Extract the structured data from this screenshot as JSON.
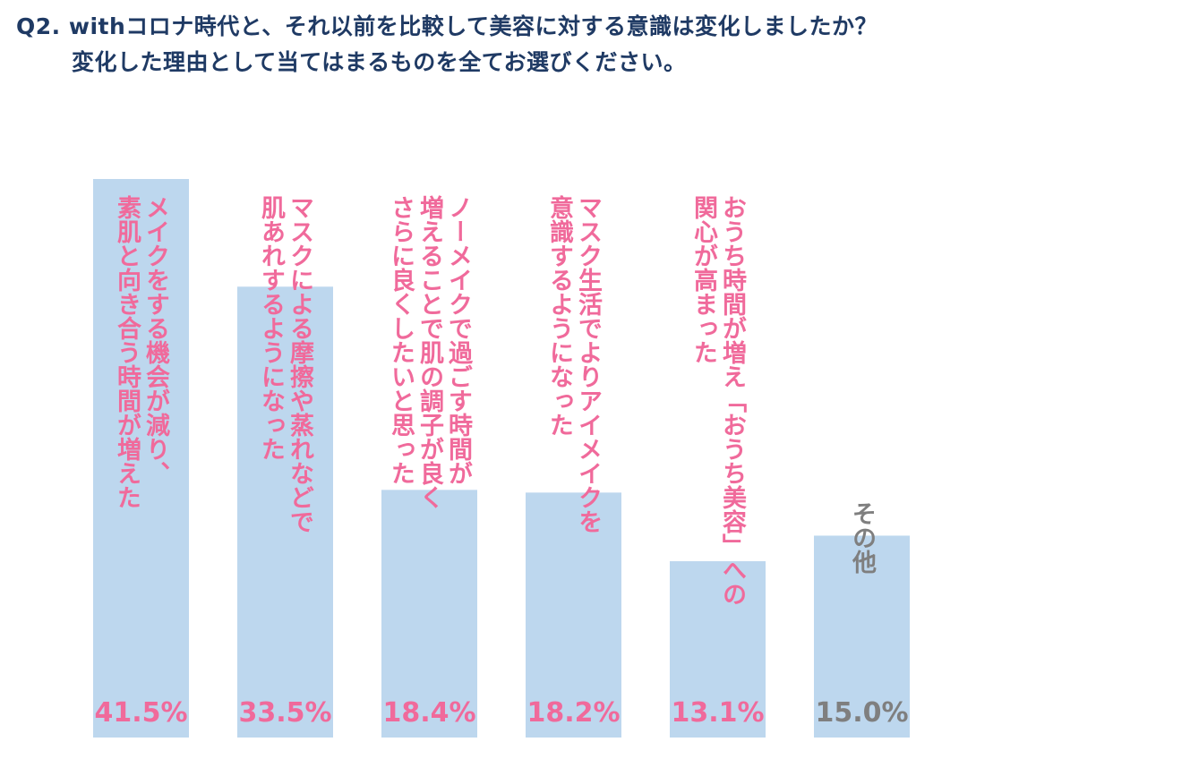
{
  "title": {
    "line1": "Q2. withコロナ時代と、それ以前を比較して美容に対する意識は変化しましたか？",
    "line2": "変化した理由として当てはまるものを全てお選びください。"
  },
  "colors": {
    "title": "#1f3a64",
    "bar": "#bdd7ee",
    "accent_label": "#f06a9b",
    "other_label": "#7f7f7f"
  },
  "chart_data": {
    "type": "bar",
    "categories": [
      [
        "メイクをする機会が減り、",
        "素肌と向き合う時間が増えた"
      ],
      [
        "マスクによる摩擦や蒸れなどで",
        "肌あれするようになった"
      ],
      [
        "ノーメイクで過ごす時間が",
        "増えることで肌の調子が良く",
        "さらに良くしたいと思った"
      ],
      [
        "マスク生活でよりアイメイクを",
        "意識するようになった"
      ],
      [
        "おうち時間が増え「おうち美容」への",
        "関心が高まった"
      ],
      [
        "その他"
      ]
    ],
    "values": [
      41.5,
      33.5,
      18.4,
      18.2,
      13.1,
      15.0
    ],
    "value_labels": [
      "41.5%",
      "33.5%",
      "18.4%",
      "18.2%",
      "13.1%",
      "15.0%"
    ],
    "label_colors": [
      "accent",
      "accent",
      "accent",
      "accent",
      "accent",
      "other"
    ],
    "ylim": [
      0,
      41.5
    ],
    "grid": false,
    "legend": "none"
  }
}
